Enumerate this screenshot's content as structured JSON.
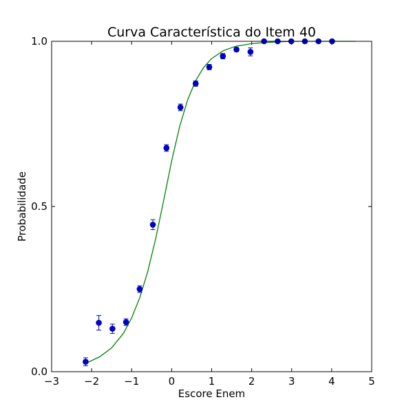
{
  "chart_data": {
    "type": "scatter",
    "title": "Curva Característica do Item 40",
    "xlabel": "Escore Enem",
    "ylabel": "Probabilidade",
    "xlim": [
      -3,
      5
    ],
    "ylim": [
      0,
      1
    ],
    "xticks": [
      -3,
      -2,
      -1,
      0,
      1,
      2,
      3,
      4,
      5
    ],
    "xtick_labels": [
      "−3",
      "−2",
      "−1",
      "0",
      "1",
      "2",
      "3",
      "4",
      "5"
    ],
    "yticks": [
      0,
      0.5,
      1
    ],
    "ytick_labels": [
      "0.0",
      "0.5",
      "1.0"
    ],
    "grid": false,
    "colors": {
      "points": "#0000cc",
      "errorbars": "#0000cc",
      "curve": "#007f00"
    },
    "series": [
      {
        "kind": "points-with-errorbars",
        "points": [
          {
            "x": -2.15,
            "y": 0.03,
            "err": 0.012
          },
          {
            "x": -1.82,
            "y": 0.148,
            "err": 0.022
          },
          {
            "x": -1.48,
            "y": 0.13,
            "err": 0.014
          },
          {
            "x": -1.14,
            "y": 0.15,
            "err": 0.01
          },
          {
            "x": -0.8,
            "y": 0.25,
            "err": 0.01
          },
          {
            "x": -0.47,
            "y": 0.445,
            "err": 0.015
          },
          {
            "x": -0.13,
            "y": 0.677,
            "err": 0.01
          },
          {
            "x": 0.22,
            "y": 0.8,
            "err": 0.01
          },
          {
            "x": 0.6,
            "y": 0.872,
            "err": 0.008
          },
          {
            "x": 0.94,
            "y": 0.922,
            "err": 0.008
          },
          {
            "x": 1.28,
            "y": 0.955,
            "err": 0.008
          },
          {
            "x": 1.62,
            "y": 0.975,
            "err": 0.006
          },
          {
            "x": 1.97,
            "y": 0.968,
            "err": 0.012
          },
          {
            "x": 2.31,
            "y": 1.0,
            "err": 0.003
          },
          {
            "x": 2.65,
            "y": 1.0,
            "err": 0.002
          },
          {
            "x": 2.99,
            "y": 1.0,
            "err": 0.002
          },
          {
            "x": 3.33,
            "y": 1.0,
            "err": 0.002
          },
          {
            "x": 3.67,
            "y": 1.0,
            "err": 0.002
          },
          {
            "x": 4.01,
            "y": 1.0,
            "err": 0.002
          }
        ]
      },
      {
        "kind": "line",
        "x": [
          -2.15,
          -1.8,
          -1.5,
          -1.2,
          -1.0,
          -0.8,
          -0.6,
          -0.4,
          -0.2,
          0.0,
          0.2,
          0.4,
          0.6,
          0.8,
          1.0,
          1.3,
          1.6,
          2.0,
          2.4,
          2.8,
          3.2,
          3.6,
          4.0,
          4.6
        ],
        "y": [
          0.025,
          0.045,
          0.072,
          0.117,
          0.163,
          0.223,
          0.302,
          0.402,
          0.518,
          0.638,
          0.742,
          0.823,
          0.881,
          0.921,
          0.948,
          0.972,
          0.985,
          0.993,
          0.997,
          0.999,
          1.0,
          1.0,
          1.0,
          1.0
        ]
      }
    ]
  }
}
